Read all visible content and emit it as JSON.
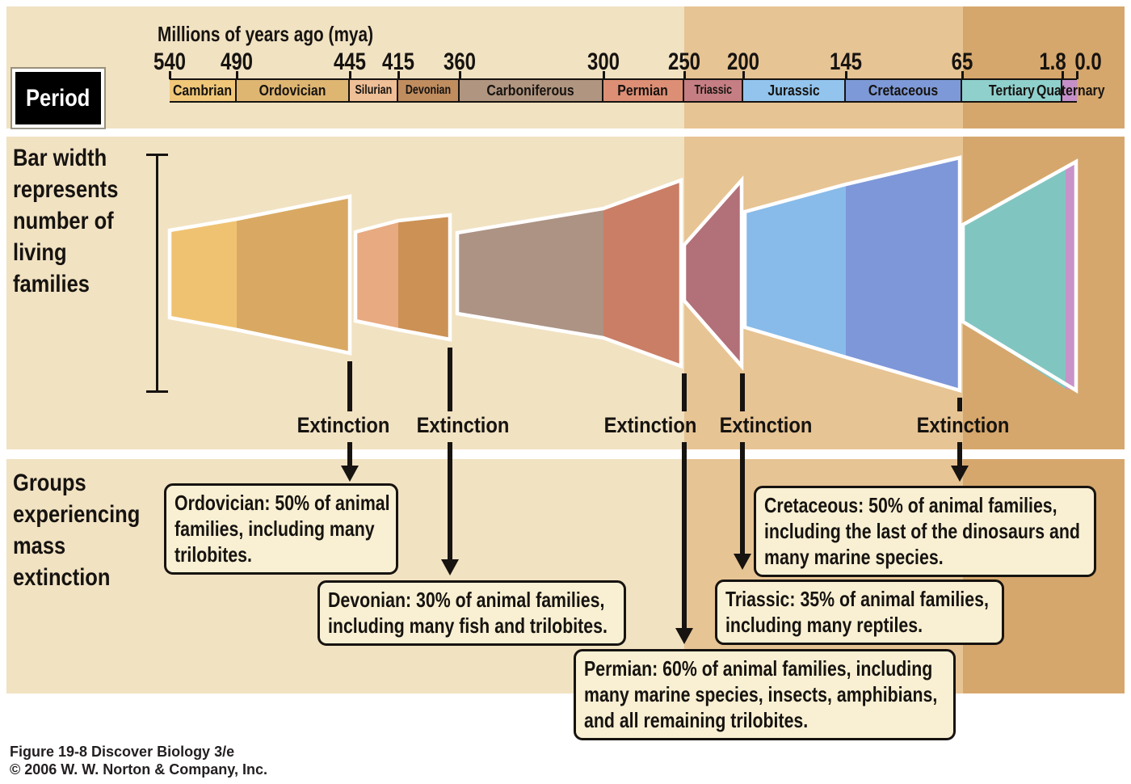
{
  "timeline": {
    "title": "Millions of years ago (mya)",
    "period_label": "Period",
    "end_mya": "0.0"
  },
  "periods": [
    {
      "name": "Cambrian",
      "start_mya": "540",
      "bar_color": "#f0c779",
      "band_color": "#efc272"
    },
    {
      "name": "Ordovician",
      "start_mya": "490",
      "bar_color": "#deb672",
      "band_color": "#d9a963"
    },
    {
      "name": "Silurian",
      "start_mya": "445",
      "bar_color": "#efbf97",
      "band_color": "#e8aa80"
    },
    {
      "name": "Devonian",
      "start_mya": "415",
      "bar_color": "#c08d5f",
      "band_color": "#cc9155"
    },
    {
      "name": "Carboniferous",
      "start_mya": "360",
      "bar_color": "#b09580",
      "band_color": "#ac9384"
    },
    {
      "name": "Permian",
      "start_mya": "300",
      "bar_color": "#dd8f75",
      "band_color": "#ca7e66"
    },
    {
      "name": "Triassic",
      "start_mya": "250",
      "bar_color": "#c57e83",
      "band_color": "#b27078"
    },
    {
      "name": "Jurassic",
      "start_mya": "200",
      "bar_color": "#92c4ed",
      "band_color": "#88bbe9"
    },
    {
      "name": "Cretaceous",
      "start_mya": "145",
      "bar_color": "#7e99d7",
      "band_color": "#7e97d9"
    },
    {
      "name": "Tertiary",
      "start_mya": "65",
      "bar_color": "#8fd0cd",
      "band_color": "#81c5c1"
    },
    {
      "name": "Quaternary",
      "start_mya": "1.8",
      "bar_color": "#c58fc9",
      "band_color": "#c793c8"
    }
  ],
  "bar_note": {
    "lines": [
      "Bar width",
      "represents",
      "number of",
      "living",
      "families"
    ]
  },
  "groups_note": {
    "lines": [
      "Groups",
      "experiencing",
      "mass",
      "extinction"
    ]
  },
  "extinction_label": "Extinction",
  "extinction_events": [
    {
      "period": "Ordovician",
      "lines": [
        "Ordovician: 50% of animal",
        "families, including many",
        "trilobites."
      ]
    },
    {
      "period": "Devonian",
      "lines": [
        "Devonian: 30% of animal families,",
        "including many fish and trilobites."
      ]
    },
    {
      "period": "Permian",
      "lines": [
        "Permian: 60% of animal families, including",
        "many marine species, insects, amphibians,",
        "and all remaining trilobites."
      ]
    },
    {
      "period": "Triassic",
      "lines": [
        "Triassic: 35% of animal families,",
        "including many reptiles."
      ]
    },
    {
      "period": "Cretaceous",
      "lines": [
        "Cretaceous: 50% of animal families,",
        "including the last of the dinosaurs and",
        "many marine species."
      ]
    }
  ],
  "caption": {
    "line1": "Figure 19-8  Discover Biology 3/e",
    "line2": "© 2006 W. W. Norton & Company, Inc."
  },
  "colors": {
    "band_paleozoic": "#f1e2c2",
    "band_mesozoic": "#e7c494",
    "band_cenozoic": "#d6a76c",
    "box_fill": "#f9f0d3",
    "ink": "#161310",
    "outline_white": "#ffffff"
  }
}
